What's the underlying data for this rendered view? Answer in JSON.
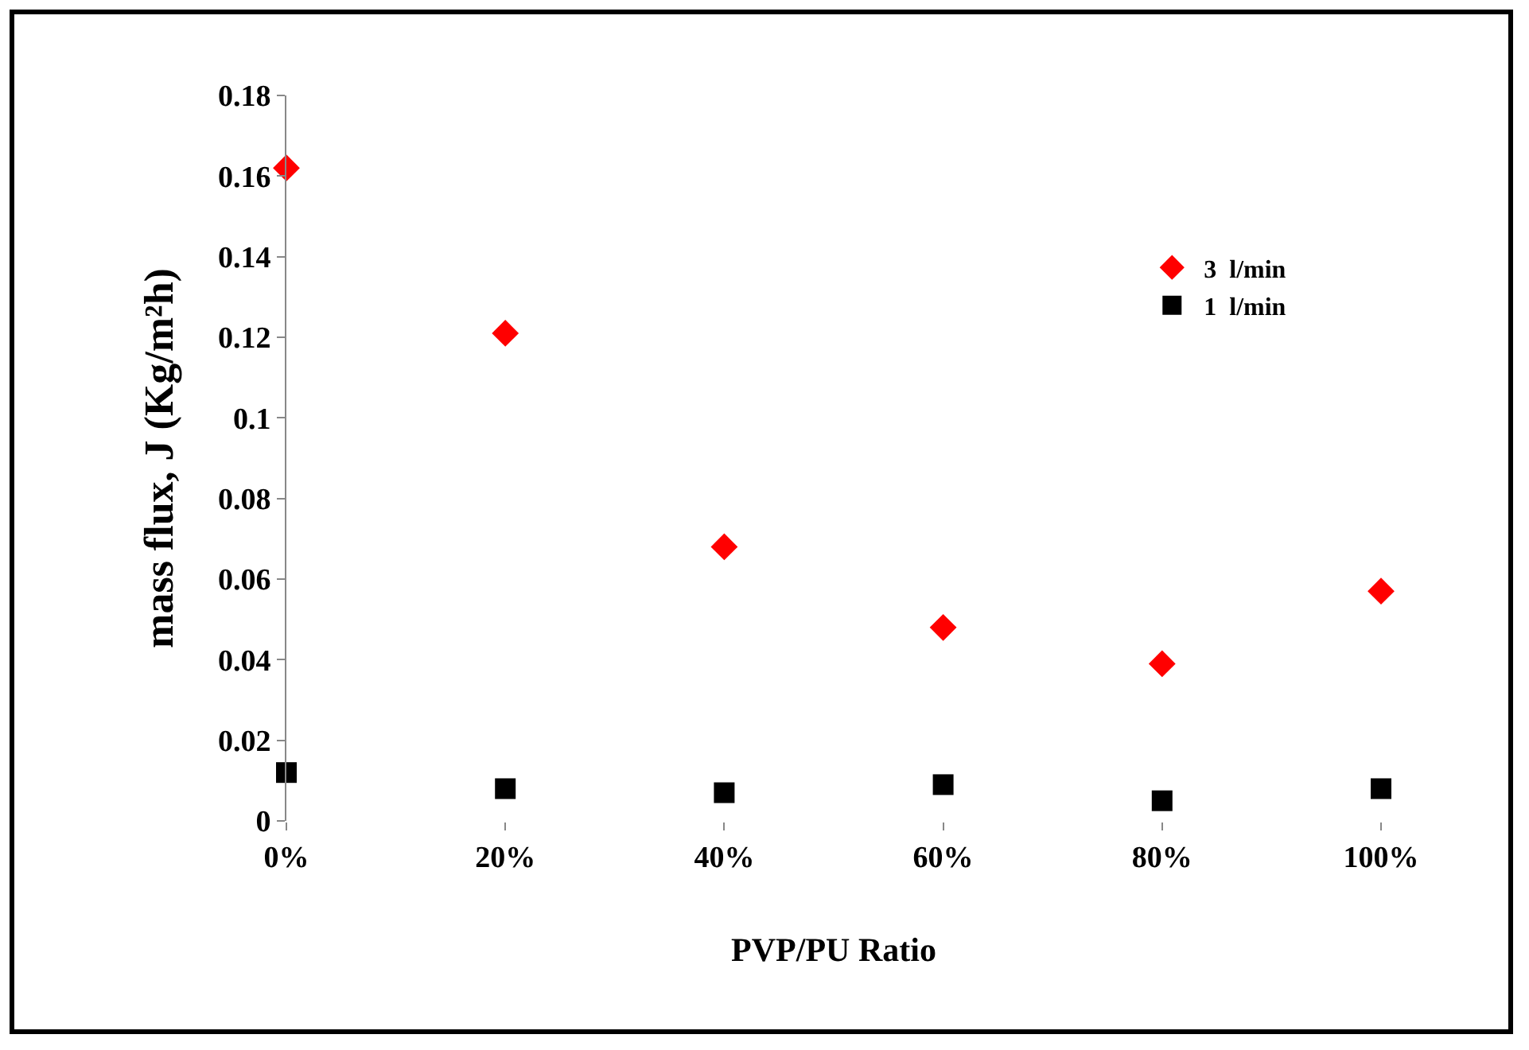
{
  "chart_data": {
    "type": "scatter",
    "xlabel": "PVP/PU Ratio",
    "ylabel": "mass flux, J (Kg/m²h)",
    "x": [
      0,
      20,
      40,
      60,
      80,
      100
    ],
    "xlim": [
      0,
      100
    ],
    "xticks": [
      {
        "value": 0,
        "label": "0%"
      },
      {
        "value": 20,
        "label": "20%"
      },
      {
        "value": 40,
        "label": "40%"
      },
      {
        "value": 60,
        "label": "60%"
      },
      {
        "value": 80,
        "label": "80%"
      },
      {
        "value": 100,
        "label": "100%"
      }
    ],
    "ylim": [
      0,
      0.18
    ],
    "yticks": [
      0,
      0.02,
      0.04,
      0.06,
      0.08,
      0.1,
      0.12,
      0.14,
      0.16,
      0.18
    ],
    "grid": false,
    "legend": "top right",
    "series": [
      {
        "name": "3  l/min",
        "color": "#ff0000",
        "marker": "diamond",
        "values": [
          0.162,
          0.121,
          0.068,
          0.048,
          0.039,
          0.057
        ]
      },
      {
        "name": "1  l/min",
        "color": "#000000",
        "marker": "square",
        "values": [
          0.012,
          0.008,
          0.007,
          0.009,
          0.005,
          0.008
        ]
      }
    ]
  }
}
